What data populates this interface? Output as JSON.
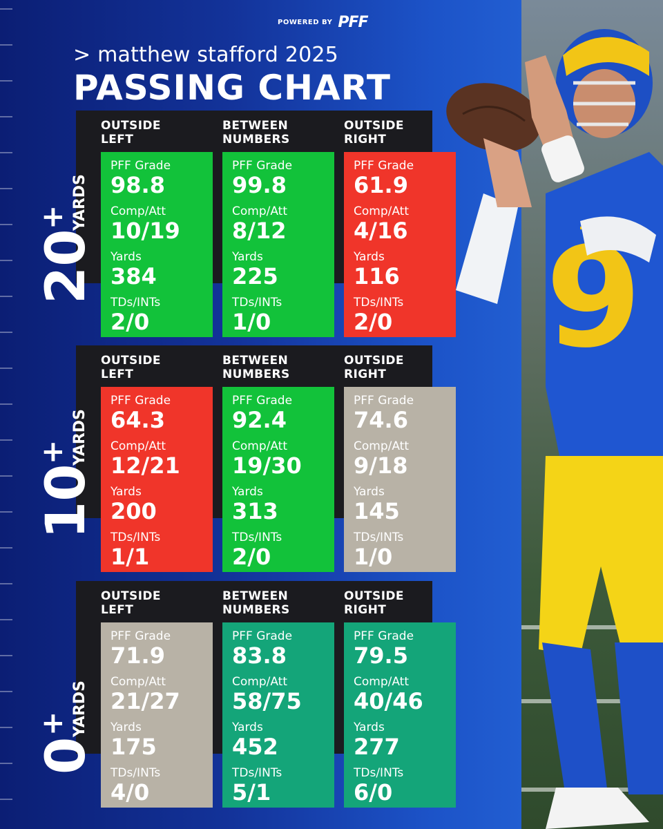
{
  "brand": {
    "powered_by": "POWERED BY",
    "logo": "PFF"
  },
  "subtitle": "> matthew stafford 2025",
  "title": "PASSING CHART",
  "colors": {
    "green": "#12c23a",
    "red": "#f0352a",
    "tan": "#b8b2a6",
    "teal": "#14a579"
  },
  "chart_data": {
    "type": "table",
    "columns": [
      "OUTSIDE\nLEFT",
      "BETWEEN\nNUMBERS",
      "OUTSIDE\nRIGHT"
    ],
    "metrics": [
      "PFF Grade",
      "Comp/Att",
      "Yards",
      "TDs/INTs"
    ],
    "rows": [
      {
        "num": "20",
        "plus": "+",
        "word": "YARDS",
        "cells": [
          {
            "color": "green",
            "values": [
              "98.8",
              "10/19",
              "384",
              "2/0"
            ]
          },
          {
            "color": "green",
            "values": [
              "99.8",
              "8/12",
              "225",
              "1/0"
            ]
          },
          {
            "color": "red",
            "values": [
              "61.9",
              "4/16",
              "116",
              "2/0"
            ]
          }
        ]
      },
      {
        "num": "10",
        "plus": "+",
        "word": "YARDS",
        "cells": [
          {
            "color": "red",
            "values": [
              "64.3",
              "12/21",
              "200",
              "1/1"
            ]
          },
          {
            "color": "green",
            "values": [
              "92.4",
              "19/30",
              "313",
              "2/0"
            ]
          },
          {
            "color": "tan",
            "values": [
              "74.6",
              "9/18",
              "145",
              "1/0"
            ]
          }
        ]
      },
      {
        "num": "0",
        "plus": "+",
        "word": "YARDS",
        "cells": [
          {
            "color": "tan",
            "values": [
              "71.9",
              "21/27",
              "175",
              "4/0"
            ]
          },
          {
            "color": "teal",
            "values": [
              "83.8",
              "58/75",
              "452",
              "5/1"
            ]
          },
          {
            "color": "teal",
            "values": [
              "79.5",
              "40/46",
              "277",
              "6/0"
            ]
          }
        ]
      }
    ]
  }
}
